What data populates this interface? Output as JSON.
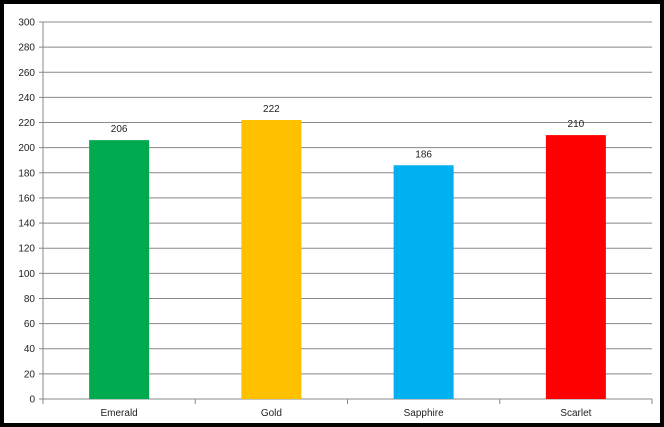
{
  "chart_data": {
    "type": "bar",
    "categories": [
      "Emerald",
      "Gold",
      "Sapphire",
      "Scarlet"
    ],
    "values": [
      206,
      222,
      186,
      210
    ],
    "colors": [
      "#00AA4E",
      "#FFC000",
      "#00B0F0",
      "#FF0000"
    ],
    "data_labels": [
      "206",
      "222",
      "186",
      "210"
    ],
    "title": "",
    "xlabel": "",
    "ylabel": "",
    "ylim": [
      0,
      300
    ],
    "yticks": [
      0,
      20,
      40,
      60,
      80,
      100,
      120,
      140,
      160,
      180,
      200,
      220,
      240,
      260,
      280,
      300
    ],
    "ytick_labels": [
      "0",
      "20",
      "40",
      "60",
      "80",
      "100",
      "120",
      "140",
      "160",
      "180",
      "200",
      "220",
      "240",
      "260",
      "280",
      "300"
    ],
    "grid": true,
    "legend": "none",
    "frame_color": "#000000",
    "grid_color": "#888888"
  }
}
